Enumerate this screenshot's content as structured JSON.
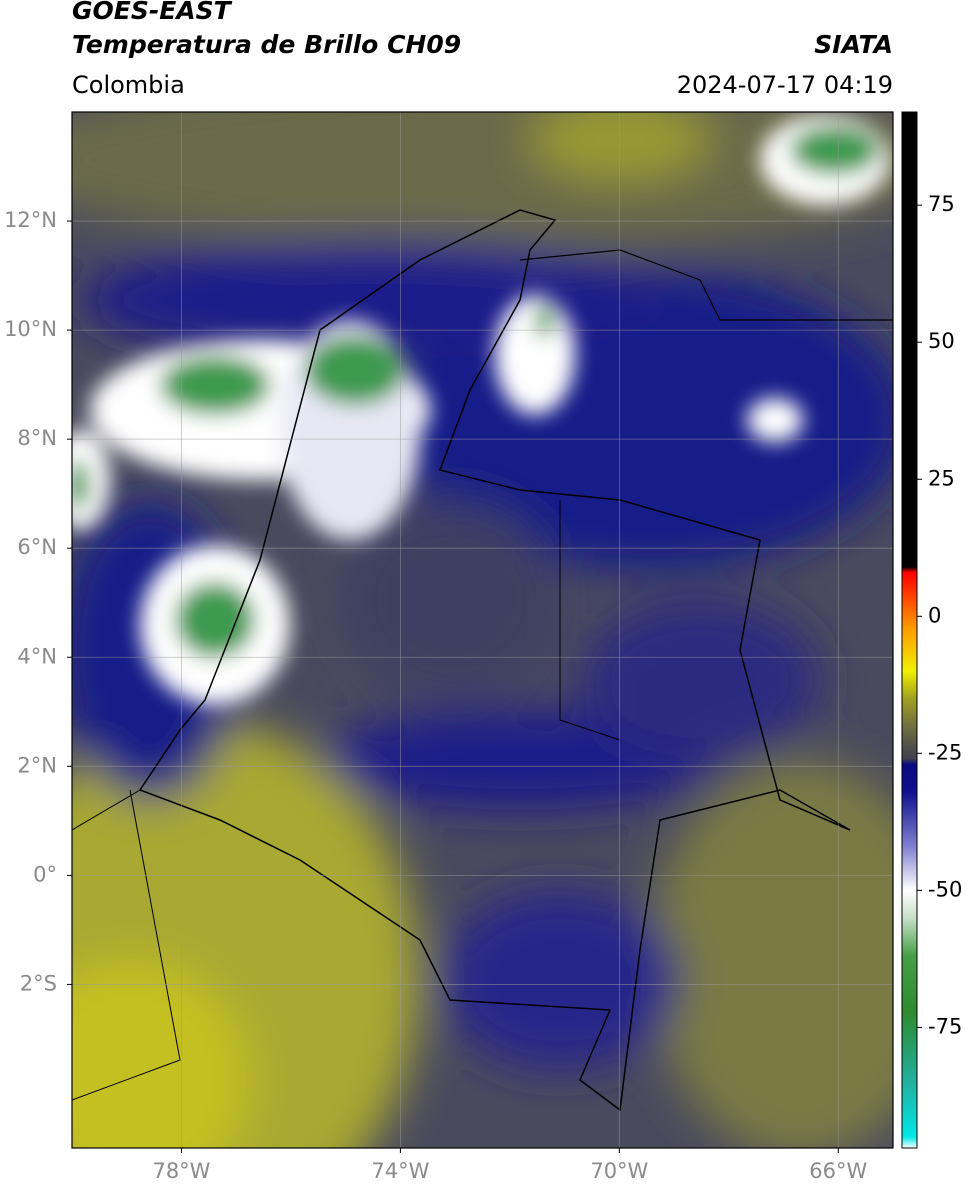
{
  "map": {
    "title": "GOES-EAST",
    "subtitle": "Temperatura de Brillo CH09",
    "source": "SIATA",
    "region": "Colombia",
    "datetime": "2024-07-17 04:19",
    "xlim": [
      -80,
      -65
    ],
    "ylim": [
      -5,
      14
    ],
    "xticks": [
      {
        "value": -78,
        "label": "78°W"
      },
      {
        "value": -74,
        "label": "74°W"
      },
      {
        "value": -70,
        "label": "70°W"
      },
      {
        "value": -66,
        "label": "66°W"
      }
    ],
    "yticks": [
      {
        "value": 12,
        "label": "12°N"
      },
      {
        "value": 10,
        "label": "10°N"
      },
      {
        "value": 8,
        "label": "8°N"
      },
      {
        "value": 6,
        "label": "6°N"
      },
      {
        "value": 4,
        "label": "4°N"
      },
      {
        "value": 2,
        "label": "2°N"
      },
      {
        "value": 0,
        "label": "0°"
      },
      {
        "value": -2,
        "label": "2°S"
      }
    ],
    "grid": true,
    "colorbar": {
      "lim": [
        -97,
        92
      ],
      "ticks": [
        75,
        50,
        25,
        0,
        -25,
        -50,
        -75
      ],
      "colors": [
        {
          "value": -97,
          "color": "#ffffff"
        },
        {
          "value": -95,
          "color": "#00e8e8"
        },
        {
          "value": -85,
          "color": "#22b0a0"
        },
        {
          "value": -72,
          "color": "#2e8b2e"
        },
        {
          "value": -62,
          "color": "#46a046"
        },
        {
          "value": -55,
          "color": "#c8e0c8"
        },
        {
          "value": -50,
          "color": "#ffffff"
        },
        {
          "value": -42,
          "color": "#8080d0"
        },
        {
          "value": -32,
          "color": "#101090"
        },
        {
          "value": -27,
          "color": "#0a0a80"
        },
        {
          "value": -26,
          "color": "#404050"
        },
        {
          "value": -20,
          "color": "#707040"
        },
        {
          "value": -15,
          "color": "#a0a020"
        },
        {
          "value": -10,
          "color": "#f0f000"
        },
        {
          "value": -2,
          "color": "#ff9900"
        },
        {
          "value": 8,
          "color": "#ff0000"
        },
        {
          "value": 9,
          "color": "#000000"
        },
        {
          "value": 92,
          "color": "#000000"
        }
      ]
    }
  }
}
